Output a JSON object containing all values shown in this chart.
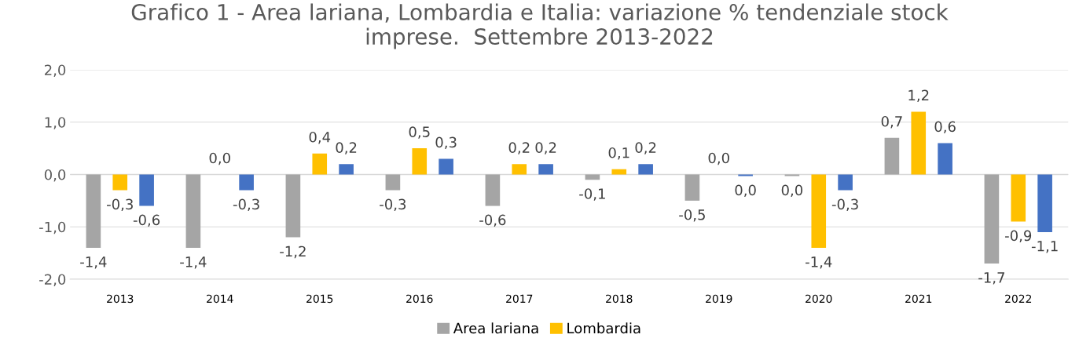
{
  "chart_data": {
    "type": "bar",
    "title": "Grafico 1 - Area lariana, Lombardia e Italia: variazione % tendenziale stock\nimprese.  Settembre 2013-2022",
    "categories": [
      "2013",
      "2014",
      "2015",
      "2016",
      "2017",
      "2018",
      "2019",
      "2020",
      "2021",
      "2022"
    ],
    "series": [
      {
        "name": "Area lariana",
        "color": "#a5a5a5",
        "values": [
          -1.4,
          -1.4,
          -1.2,
          -0.3,
          -0.6,
          -0.1,
          -0.5,
          -0.03,
          0.7,
          -1.7
        ],
        "value_labels": [
          "-1,4",
          "-1,4",
          "-1,2",
          "-0,3",
          "-0,6",
          "-0,1",
          "-0,5",
          "0,0",
          "0,7",
          "-1,7"
        ]
      },
      {
        "name": "Lombardia",
        "color": "#ffc000",
        "values": [
          -0.3,
          0.0,
          0.4,
          0.5,
          0.2,
          0.1,
          0.0,
          -1.4,
          1.2,
          -0.9
        ],
        "value_labels": [
          "-0,3",
          "0,0",
          "0,4",
          "0,5",
          "0,2",
          "0,1",
          "0,0",
          "-1,4",
          "1,2",
          "-0,9"
        ]
      },
      {
        "color": "#4472c4",
        "values": [
          -0.6,
          -0.3,
          0.2,
          0.3,
          0.2,
          0.2,
          -0.03,
          -0.3,
          0.6,
          -1.1
        ],
        "value_labels": [
          "-0,6",
          "-0,3",
          "0,2",
          "0,3",
          "0,2",
          "0,2",
          "0,0",
          "-0,3",
          "0,6",
          "-1,1"
        ]
      }
    ],
    "ylim": [
      -2.0,
      2.0
    ],
    "yticks": [
      {
        "value": -2.0,
        "label": "-2,0"
      },
      {
        "value": -1.0,
        "label": "-1,0"
      },
      {
        "value": 0.0,
        "label": "0,0"
      },
      {
        "value": 1.0,
        "label": "1,0"
      },
      {
        "value": 2.0,
        "label": "2,0"
      }
    ],
    "grid": "y",
    "legend": "bottom"
  }
}
